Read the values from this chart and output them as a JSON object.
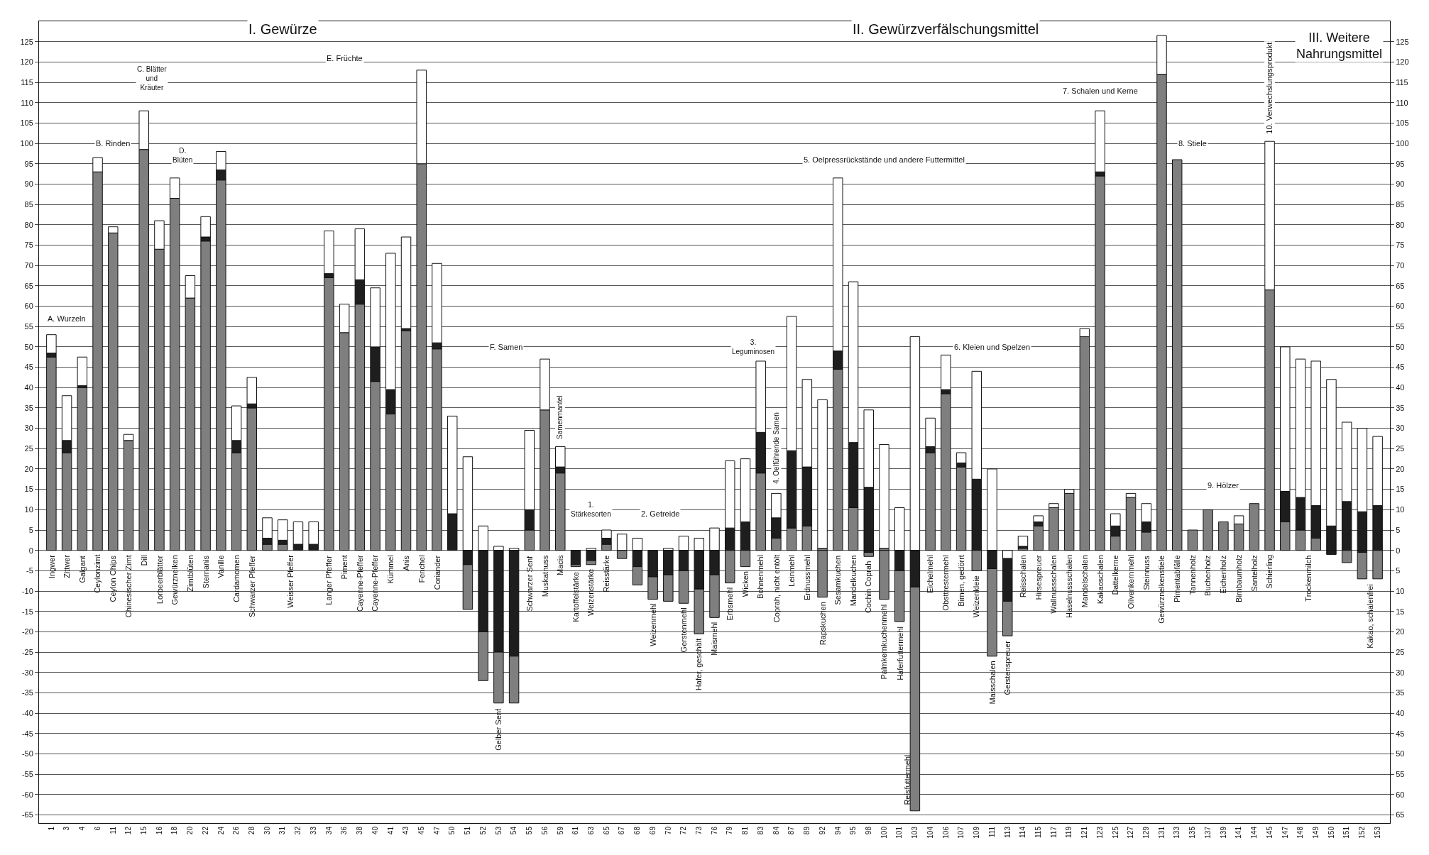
{
  "chart_data": {
    "type": "bar",
    "stacked": true,
    "categories": [
      "1",
      "3",
      "4",
      "6",
      "11",
      "12",
      "15",
      "16",
      "18",
      "20",
      "22",
      "24",
      "26",
      "28",
      "30",
      "31",
      "32",
      "33",
      "34",
      "36",
      "38",
      "40",
      "41",
      "43",
      "45",
      "47",
      "50",
      "51",
      "52",
      "53",
      "54",
      "55",
      "56",
      "59",
      "61",
      "63",
      "65",
      "67",
      "68",
      "69",
      "70",
      "72",
      "73",
      "76",
      "79",
      "81",
      "83",
      "84",
      "87",
      "89",
      "92",
      "94",
      "95",
      "98",
      "100",
      "101",
      "103",
      "104",
      "106",
      "107",
      "109",
      "111",
      "113",
      "114",
      "115",
      "117",
      "119",
      "121",
      "123",
      "125",
      "127",
      "129",
      "131",
      "133",
      "135",
      "137",
      "139",
      "141",
      "144",
      "145",
      "147",
      "148",
      "149",
      "150",
      "151",
      "152",
      "153"
    ],
    "series": [
      {
        "color": "#7f7f7f",
        "values": [
          47.5,
          24,
          40,
          93,
          78,
          27,
          98.5,
          74,
          86.5,
          62,
          76,
          91,
          24,
          35,
          1.5,
          1.5,
          null,
          null,
          67,
          53.5,
          60.5,
          41.5,
          33.5,
          54,
          95,
          49.5,
          null,
          null,
          null,
          null,
          null,
          5,
          34.5,
          19,
          null,
          null,
          1.5,
          null,
          null,
          null,
          null,
          null,
          null,
          null,
          null,
          null,
          19,
          3,
          5.5,
          6,
          0.5,
          44.5,
          10.5,
          null,
          0.5,
          null,
          null,
          24,
          38.5,
          20.5,
          null,
          null,
          null,
          0.5,
          6,
          10.5,
          14,
          52.5,
          92,
          3.5,
          13,
          4.5,
          117,
          96,
          5,
          10,
          7,
          6.5,
          11.5,
          64,
          7,
          5,
          3,
          null,
          null,
          null,
          null
        ]
      },
      {
        "color": "#1e1e1e",
        "values": [
          1,
          3,
          0.5,
          null,
          null,
          null,
          null,
          null,
          null,
          null,
          1,
          2.5,
          3,
          1,
          1.5,
          1,
          1.5,
          1.5,
          1,
          null,
          6,
          8.5,
          6,
          0.5,
          null,
          1.5,
          9,
          null,
          null,
          null,
          null,
          5,
          null,
          1.5,
          null,
          null,
          1.5,
          null,
          null,
          null,
          null,
          null,
          null,
          null,
          5.5,
          7,
          10,
          5,
          19,
          14.5,
          null,
          4.5,
          16,
          15.5,
          null,
          null,
          null,
          1.5,
          1,
          1,
          17.5,
          null,
          null,
          0.5,
          1,
          null,
          null,
          null,
          1,
          2.5,
          null,
          2.5,
          null,
          null,
          null,
          null,
          null,
          null,
          null,
          null,
          7.5,
          8,
          8,
          6,
          12,
          9.5,
          11
        ]
      },
      {
        "color": "#ffffff",
        "values": [
          4.5,
          11,
          7,
          3.5,
          1.5,
          1.5,
          9.5,
          7,
          5,
          5.5,
          5,
          4.5,
          8.5,
          6.5,
          5,
          5,
          5.5,
          5.5,
          10.5,
          7,
          12.5,
          14.5,
          33.5,
          22.5,
          23,
          19.5,
          24,
          23,
          6,
          1,
          0.5,
          19.5,
          12.5,
          5,
          null,
          0.5,
          2,
          4,
          3,
          null,
          0.5,
          3.5,
          3,
          5.5,
          16.5,
          15.5,
          17.5,
          6,
          33,
          21.5,
          36.5,
          42.5,
          39.5,
          19,
          25.5,
          10.5,
          52.5,
          7,
          8.5,
          2.5,
          26.5,
          20,
          null,
          2.5,
          1.5,
          1,
          1,
          2,
          15,
          3,
          1,
          4.5,
          9.5,
          null,
          null,
          null,
          null,
          2,
          null,
          36.5,
          35.5,
          34,
          35.5,
          36,
          19.5,
          20.5,
          17
        ]
      },
      {
        "color": "#ffffff",
        "values": [
          null,
          null,
          null,
          null,
          null,
          null,
          null,
          null,
          null,
          null,
          null,
          null,
          null,
          null,
          null,
          null,
          null,
          null,
          null,
          null,
          null,
          null,
          null,
          null,
          null,
          null,
          null,
          null,
          null,
          null,
          null,
          null,
          null,
          null,
          null,
          null,
          null,
          null,
          null,
          null,
          null,
          null,
          null,
          null,
          null,
          null,
          null,
          null,
          null,
          null,
          null,
          null,
          null,
          null,
          null,
          null,
          null,
          null,
          null,
          null,
          null,
          null,
          -2,
          null,
          null,
          null,
          null,
          null,
          null,
          null,
          null,
          null,
          null,
          null,
          null,
          null,
          null,
          null,
          null,
          null,
          null,
          null,
          null,
          null,
          null,
          null,
          null
        ]
      },
      {
        "color": "#1e1e1e",
        "values": [
          null,
          null,
          null,
          null,
          null,
          null,
          null,
          null,
          null,
          null,
          null,
          null,
          null,
          null,
          null,
          null,
          null,
          null,
          null,
          null,
          null,
          null,
          null,
          null,
          null,
          null,
          null,
          -3.5,
          -20,
          -25,
          -26,
          null,
          null,
          null,
          -3.5,
          -2.5,
          null,
          null,
          -4,
          -6.5,
          -6,
          -5,
          -9.5,
          -6,
          null,
          null,
          null,
          null,
          null,
          null,
          null,
          null,
          null,
          -0.5,
          null,
          -5,
          -9,
          null,
          null,
          null,
          null,
          -4.5,
          -10.5,
          null,
          null,
          null,
          null,
          null,
          null,
          null,
          null,
          null,
          null,
          null,
          null,
          null,
          null,
          null,
          null,
          null,
          null,
          null,
          null,
          -1,
          null,
          -0.5,
          null
        ]
      },
      {
        "color": "#7f7f7f",
        "values": [
          null,
          null,
          null,
          null,
          null,
          null,
          null,
          null,
          null,
          null,
          null,
          null,
          null,
          null,
          null,
          null,
          null,
          null,
          null,
          null,
          null,
          null,
          null,
          null,
          null,
          null,
          null,
          -11,
          -12,
          -12.5,
          -11.5,
          null,
          null,
          null,
          -0.5,
          -1,
          null,
          -2,
          -4.5,
          -5.5,
          -6.5,
          -8,
          -11,
          -10.5,
          -8,
          -4,
          null,
          null,
          null,
          null,
          -11.5,
          null,
          null,
          -1,
          -12,
          -12.5,
          -55,
          null,
          null,
          null,
          -5,
          -21.5,
          -8.5,
          null,
          null,
          null,
          null,
          null,
          null,
          null,
          null,
          null,
          null,
          null,
          null,
          null,
          null,
          null,
          null,
          null,
          null,
          null,
          null,
          null,
          -3,
          -6.5,
          -7
        ]
      }
    ],
    "ylim": [
      -67,
      130
    ],
    "yticks": [
      -65,
      -60,
      -55,
      -50,
      -45,
      -40,
      -35,
      -30,
      -25,
      -20,
      -15,
      -10,
      -5,
      0,
      5,
      10,
      15,
      20,
      25,
      30,
      35,
      40,
      45,
      50,
      55,
      60,
      65,
      70,
      75,
      80,
      85,
      90,
      95,
      100,
      105,
      110,
      115,
      120,
      125
    ],
    "y2lim": [
      -67,
      130
    ],
    "y2ticks": [
      {
        "value": -65,
        "label": "65"
      },
      {
        "value": -60,
        "label": "60"
      },
      {
        "value": -55,
        "label": "55"
      },
      {
        "value": -50,
        "label": "50"
      },
      {
        "value": -45,
        "label": "45"
      },
      {
        "value": -40,
        "label": "40"
      },
      {
        "value": -35,
        "label": "35"
      },
      {
        "value": -30,
        "label": "30"
      },
      {
        "value": -25,
        "label": "25"
      },
      {
        "value": -20,
        "label": "20"
      },
      {
        "value": -15,
        "label": "15"
      },
      {
        "value": -10,
        "label": "10"
      },
      {
        "value": -5,
        "label": "5"
      },
      0,
      5,
      10,
      15,
      20,
      25,
      30,
      35,
      40,
      45,
      50,
      55,
      60,
      65,
      70,
      75,
      80,
      85,
      90,
      95,
      100,
      105,
      110,
      115,
      120,
      125
    ],
    "grid": "y",
    "annotations": [
      "I. Gewürze",
      "II. Gewürzverfälschungsmittel",
      "III. Weitere\nNahrungsmittel",
      "A. Wurzeln",
      "B. Rinden",
      "C. Blätter\nund\nKräuter",
      "D.\nBlüten",
      "E. Früchte",
      "F. Samen",
      "Samenmantel",
      "1.\nStärkesorten",
      "2. Getreide",
      "3.\nLeguminosen",
      "4. Oelführende Samen",
      "5. Oelpressrückstände und andere Futtermittel",
      "6. Kleien und Spelzen",
      "7. Schalen und Kerne",
      "8. Stiele",
      "9. Hölzer",
      "10. Verwechslungsprodukt",
      "Ingwer",
      "Zittwer",
      "Galgant",
      "Ceylonzimt",
      "Ceylon Chips",
      "Chinesischer Zimt",
      "Dill",
      "Lorbeerblätter",
      "Gewürznelken",
      "Zimtblüten",
      "Sternanis",
      "Vanille",
      "Cardamomen",
      "Schwarzer Pfeffer",
      "Weisser Pfeffer",
      "Langer Pfeffer",
      "Piment",
      "Cayenne-Pfeffer",
      "Cayenne-Pfeffer",
      "Kümmel",
      "Anis",
      "Fenchel",
      "Coriander",
      "Gelber Senf",
      "Schwarzer Senf",
      "Muskatnuss",
      "Macis",
      "Kartoffelstärke",
      "Weizenstärke",
      "Reisstärke",
      "Weizenmehl",
      "Gerstenmehl",
      "Hafer, geschält",
      "Maismehl",
      "Erbsmehl",
      "Wicken",
      "Bohnenmehl",
      "Coprah, nicht entölt",
      "Leinmehl",
      "Erdnussmehl",
      "Rapskuchen",
      "Sesamkuchen",
      "Mandelkuchen",
      "Cochin Coprah",
      "Palmkernkuchenmehl",
      "Haferfuttermehl",
      "Reisfuttermehl",
      "Eichelmehl",
      "Obsttrestermehl",
      "Birnen, gedörrt",
      "Weizenkleie",
      "Maisschalen",
      "Gerstenspreuer",
      "Reisschalen",
      "Hirsespreuer",
      "Wallnussschalen",
      "Haselnussschalen",
      "Mandelschalen",
      "Kakaoschalen",
      "Dattelkerne",
      "Olivenkernmehl",
      "Steinnuss",
      "Gewürznelkenstiele",
      "Pimentabfälle",
      "Tannenholz",
      "Buchenholz",
      "Eichenholz",
      "Birnbaumholz",
      "Santelholz",
      "Schierling",
      "Trockenmilch",
      "Kakao, schalenfrei"
    ]
  }
}
